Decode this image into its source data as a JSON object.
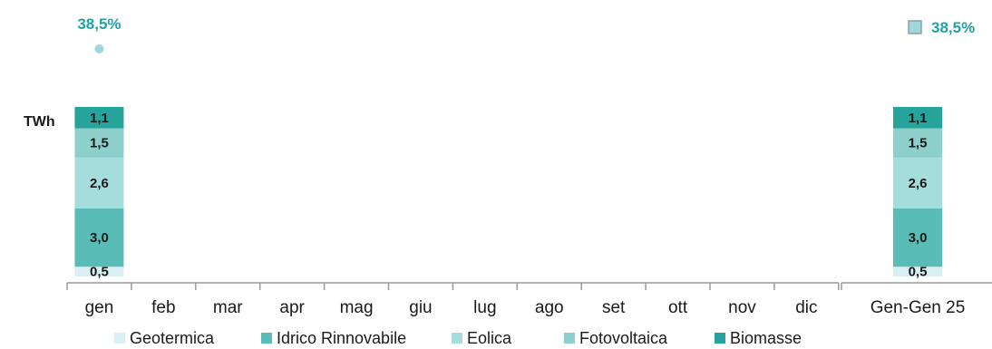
{
  "chart_data": {
    "type": "bar",
    "stacked": true,
    "unit": "TWh",
    "categories": [
      "gen",
      "feb",
      "mar",
      "apr",
      "mag",
      "giu",
      "lug",
      "ago",
      "set",
      "ott",
      "nov",
      "dic"
    ],
    "summary_category": "Gen-Gen 25",
    "series": [
      {
        "name": "Geotermica",
        "color": "#daeff4",
        "values": [
          0.5,
          null,
          null,
          null,
          null,
          null,
          null,
          null,
          null,
          null,
          null,
          null
        ],
        "summary_value": 0.5
      },
      {
        "name": "Idrico Rinnovabile",
        "color": "#59bcb6",
        "values": [
          3.0,
          null,
          null,
          null,
          null,
          null,
          null,
          null,
          null,
          null,
          null,
          null
        ],
        "summary_value": 3.0
      },
      {
        "name": "Eolica",
        "color": "#a5dcdc",
        "values": [
          2.6,
          null,
          null,
          null,
          null,
          null,
          null,
          null,
          null,
          null,
          null,
          null
        ],
        "summary_value": 2.6
      },
      {
        "name": "Fotovoltaica",
        "color": "#8ccfcb",
        "values": [
          1.5,
          null,
          null,
          null,
          null,
          null,
          null,
          null,
          null,
          null,
          null,
          null
        ],
        "summary_value": 1.5
      },
      {
        "name": "Biomasse",
        "color": "#26a39a",
        "values": [
          1.1,
          null,
          null,
          null,
          null,
          null,
          null,
          null,
          null,
          null,
          null,
          null
        ],
        "summary_value": 1.1
      }
    ],
    "value_labels": {
      "gen": [
        "0,5",
        "3,0",
        "2,6",
        "1,5",
        "1,1"
      ],
      "summary": [
        "0,5",
        "3,0",
        "2,6",
        "1,5",
        "1,1"
      ]
    },
    "share": {
      "values": [
        38.5,
        null,
        null,
        null,
        null,
        null,
        null,
        null,
        null,
        null,
        null,
        null
      ],
      "labels": [
        "38,5%",
        "",
        "",
        "",
        "",
        "",
        "",
        "",
        "",
        "",
        "",
        ""
      ],
      "summary_value": 38.5,
      "summary_label": "38,5%",
      "color": "#1fa3a8",
      "marker_color": "#9fd8da"
    },
    "legend": {
      "position": "bottom",
      "entries": [
        "Geotermica",
        "Idrico Rinnovabile",
        "Eolica",
        "Fotovoltaica",
        "Biomasse"
      ]
    },
    "ylabel": "TWh",
    "grid": false
  }
}
